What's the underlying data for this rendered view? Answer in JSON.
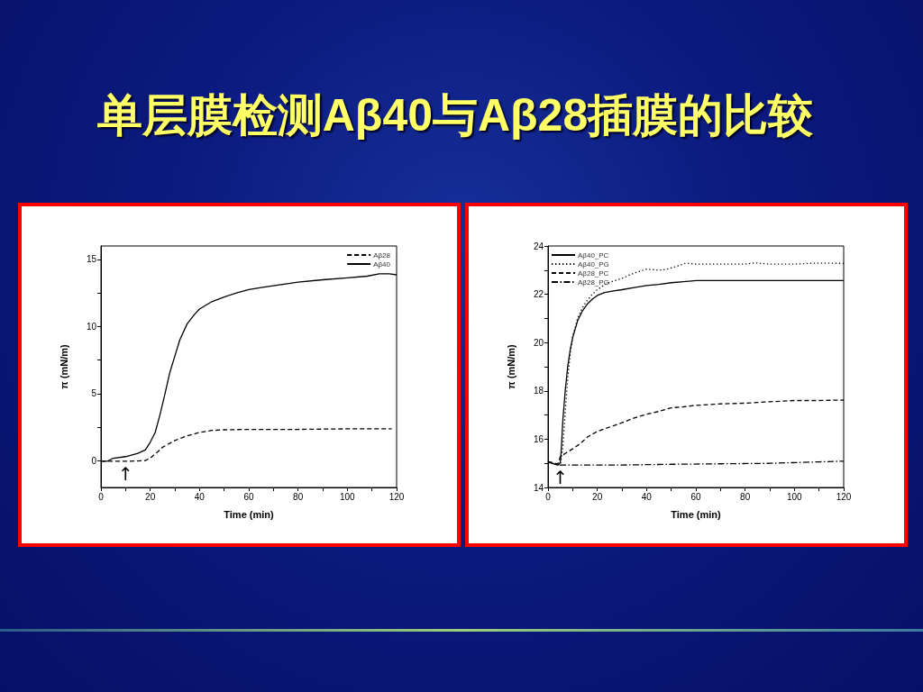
{
  "chart_data": [
    {
      "type": "line",
      "title": "单层膜检测Aβ40与Aβ28插膜的比较",
      "xlabel": "Time (min)",
      "ylabel": "π (mN/m)",
      "xlim": [
        0,
        120
      ],
      "xticks": [
        0,
        {
          "value": 10,
          "label": null
        },
        20,
        {
          "value": 30,
          "label": null
        },
        40,
        {
          "value": 50,
          "label": null
        },
        60,
        {
          "value": 70,
          "label": null
        },
        80,
        {
          "value": 90,
          "label": null
        },
        100,
        {
          "value": 110,
          "label": null
        },
        120
      ],
      "ylim": [
        -2,
        16
      ],
      "yticks": [
        0,
        {
          "value": 2.5,
          "label": null
        },
        5,
        {
          "value": 7.5,
          "label": null
        },
        10,
        {
          "value": 12.5,
          "label": null
        },
        15
      ],
      "legend": "top right",
      "series": [
        {
          "name": "Aβ28",
          "color": "#000000",
          "line_style": "dashed",
          "x": [
            0,
            10,
            18,
            20,
            23,
            25,
            30,
            35,
            40,
            45,
            50,
            60,
            80,
            100,
            118
          ],
          "values": [
            -0.05,
            -0.05,
            0,
            0.2,
            0.65,
            1.0,
            1.5,
            1.85,
            2.1,
            2.25,
            2.3,
            2.33,
            2.33,
            2.37,
            2.37
          ]
        },
        {
          "name": "Aβ40",
          "color": "#000000",
          "line_style": "solid",
          "x": [
            0,
            2.5,
            5,
            10,
            15,
            18,
            20,
            22,
            24,
            26,
            28,
            30,
            32,
            35,
            38,
            40,
            45,
            50,
            55,
            60,
            65,
            70,
            80,
            90,
            100,
            108,
            113,
            117,
            120
          ],
          "values": [
            -0.05,
            -0.05,
            0.18,
            0.3,
            0.55,
            0.8,
            1.37,
            2.1,
            3.45,
            5.0,
            6.6,
            7.8,
            9.0,
            10.2,
            10.9,
            11.3,
            11.85,
            12.2,
            12.5,
            12.75,
            12.9,
            13.03,
            13.3,
            13.48,
            13.63,
            13.75,
            13.92,
            13.92,
            13.85
          ]
        }
      ],
      "annotations": [
        {
          "text": "↑",
          "x": 10,
          "y": -0.05
        }
      ]
    },
    {
      "type": "line",
      "xlabel": "Time (min)",
      "ylabel": "π (mN/m)",
      "xlim": [
        0,
        120
      ],
      "xticks": [
        0,
        {
          "value": 10,
          "label": null
        },
        20,
        {
          "value": 30,
          "label": null
        },
        40,
        {
          "value": 50,
          "label": null
        },
        60,
        {
          "value": 70,
          "label": null
        },
        80,
        {
          "value": 90,
          "label": null
        },
        100,
        {
          "value": 110,
          "label": null
        },
        120
      ],
      "ylim": [
        14,
        24
      ],
      "yticks": [
        14,
        {
          "value": 15,
          "label": null
        },
        16,
        {
          "value": 17,
          "label": null
        },
        18,
        {
          "value": 19,
          "label": null
        },
        20,
        {
          "value": 21,
          "label": null
        },
        22,
        {
          "value": 23,
          "label": null
        },
        24
      ],
      "legend": "top left",
      "series": [
        {
          "name": "Aβ40_PC",
          "color": "#000000",
          "line_style": "solid",
          "x": [
            0,
            2,
            4,
            5,
            5.5,
            6,
            7,
            8,
            9,
            10,
            12,
            14,
            16,
            18,
            20,
            23,
            26,
            30,
            35,
            40,
            45,
            50,
            55,
            60,
            70,
            80,
            90,
            100,
            110,
            120
          ],
          "values": [
            15.06,
            14.98,
            14.93,
            15.03,
            15.78,
            16.78,
            18.02,
            19.02,
            19.7,
            20.2,
            20.9,
            21.32,
            21.6,
            21.8,
            21.95,
            22.07,
            22.13,
            22.19,
            22.28,
            22.36,
            22.41,
            22.48,
            22.52,
            22.57,
            22.57,
            22.57,
            22.57,
            22.57,
            22.57,
            22.57
          ]
        },
        {
          "name": "Aβ40_PG",
          "color": "#000000",
          "line_style": "dotted",
          "x": [
            0,
            3,
            5,
            6,
            7,
            8,
            9,
            10,
            12,
            14,
            16,
            18,
            20,
            23,
            26,
            30,
            35,
            40,
            45,
            48,
            52,
            56,
            60,
            70,
            80,
            84,
            90,
            100,
            108,
            120
          ],
          "values": [
            15.08,
            14.96,
            14.93,
            15.66,
            17.15,
            18.52,
            19.52,
            20.26,
            21.0,
            21.45,
            21.76,
            22.0,
            22.19,
            22.4,
            22.53,
            22.66,
            22.88,
            23.04,
            23.0,
            23.03,
            23.15,
            23.29,
            23.25,
            23.25,
            23.25,
            23.3,
            23.25,
            23.25,
            23.29,
            23.28
          ]
        },
        {
          "name": "Aβ28_PC",
          "color": "#000000",
          "line_style": "dashed",
          "x": [
            0,
            4,
            5,
            7,
            10,
            13,
            16,
            20,
            25,
            30,
            35,
            40,
            45,
            50,
            55,
            60,
            70,
            80,
            90,
            100,
            110,
            120
          ],
          "values": [
            15.08,
            14.97,
            15.28,
            15.41,
            15.6,
            15.81,
            16.09,
            16.32,
            16.5,
            16.68,
            16.88,
            17.03,
            17.15,
            17.3,
            17.34,
            17.4,
            17.46,
            17.49,
            17.55,
            17.6,
            17.6,
            17.62
          ]
        },
        {
          "name": "Aβ28_PG",
          "color": "#000000",
          "line_style": "dashdot",
          "x": [
            0,
            4,
            10,
            30,
            50,
            70,
            90,
            110,
            120
          ],
          "values": [
            15.06,
            14.93,
            14.93,
            14.93,
            14.96,
            14.98,
            15.0,
            15.06,
            15.09
          ]
        }
      ],
      "annotations": [
        {
          "text": "↑",
          "x": 5,
          "y": 14.93
        }
      ]
    }
  ]
}
